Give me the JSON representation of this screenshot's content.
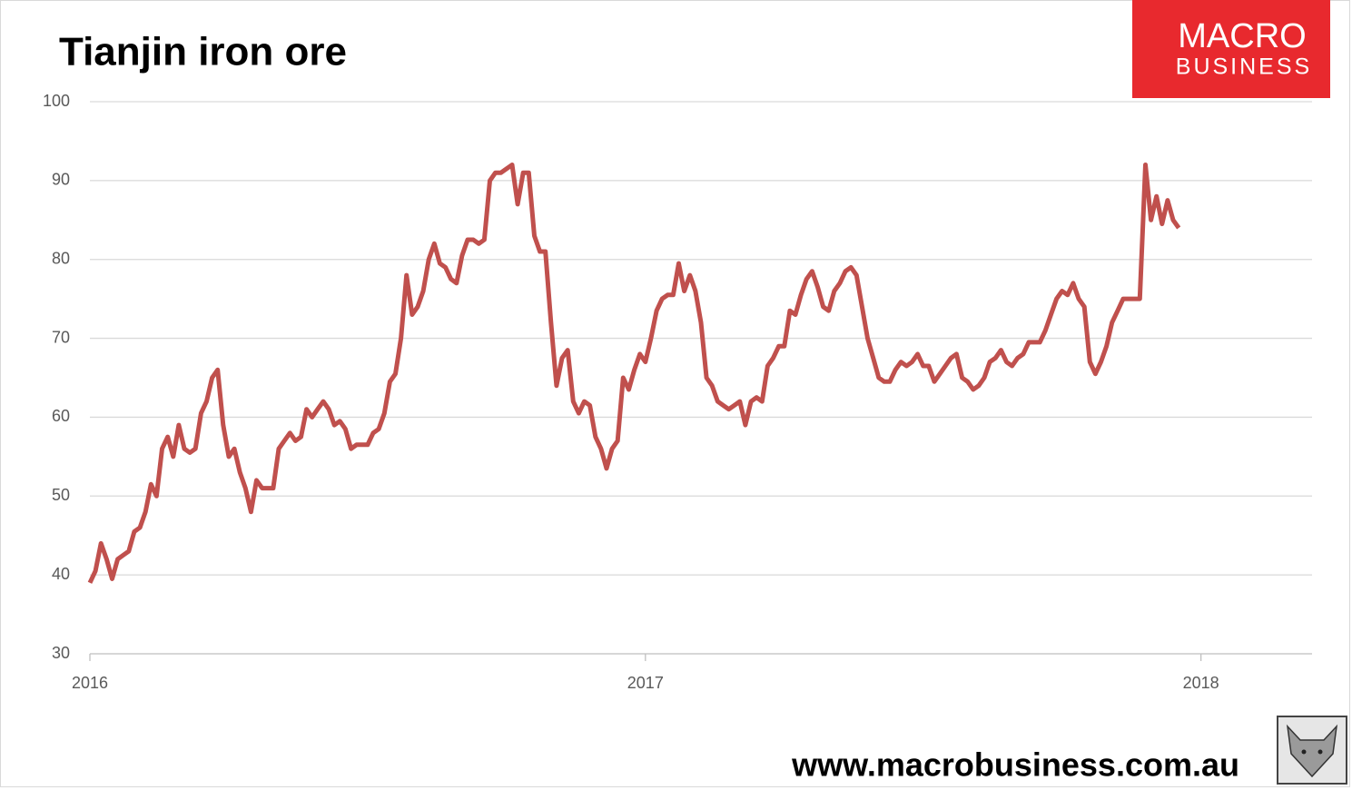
{
  "chart_data": {
    "type": "line",
    "title": "Tianjin iron ore",
    "x": [
      2016,
      2016.01,
      2016.02,
      2016.03,
      2016.04,
      2016.05,
      2016.06,
      2016.07,
      2016.08,
      2016.09,
      2016.1,
      2016.11,
      2016.12,
      2016.13,
      2016.14,
      2016.15,
      2016.16,
      2016.17,
      2016.18,
      2016.19,
      2016.2,
      2016.21,
      2016.22,
      2016.23,
      2016.24,
      2016.25,
      2016.26,
      2016.27,
      2016.28,
      2016.29,
      2016.3,
      2016.31,
      2016.32,
      2016.33,
      2016.34,
      2016.35,
      2016.36,
      2016.37,
      2016.38,
      2016.39,
      2016.4,
      2016.41,
      2016.42,
      2016.43,
      2016.44,
      2016.45,
      2016.46,
      2016.47,
      2016.48,
      2016.49,
      2016.5,
      2016.51,
      2016.52,
      2016.53,
      2016.54,
      2016.55,
      2016.56,
      2016.57,
      2016.58,
      2016.59,
      2016.6,
      2016.61,
      2016.62,
      2016.63,
      2016.64,
      2016.65,
      2016.66,
      2016.67,
      2016.68,
      2016.69,
      2016.7,
      2016.71,
      2016.72,
      2016.73,
      2016.74,
      2016.75,
      2016.76,
      2016.77,
      2016.78,
      2016.79,
      2016.8,
      2016.81,
      2016.82,
      2016.83,
      2016.84,
      2016.85,
      2016.86,
      2016.87,
      2016.88,
      2016.89,
      2016.9,
      2016.91,
      2016.92,
      2016.93,
      2016.94,
      2016.95,
      2016.96,
      2016.97,
      2016.98,
      2016.99,
      2017,
      2017.01,
      2017.02,
      2017.03,
      2017.04,
      2017.05,
      2017.06,
      2017.07,
      2017.08,
      2017.09,
      2017.1,
      2017.11,
      2017.12,
      2017.13,
      2017.14,
      2017.15,
      2017.16,
      2017.17,
      2017.18,
      2017.19,
      2017.2,
      2017.21,
      2017.22,
      2017.23,
      2017.24,
      2017.25,
      2017.26,
      2017.27,
      2017.28,
      2017.29,
      2017.3,
      2017.31,
      2017.32,
      2017.33,
      2017.34,
      2017.35,
      2017.36,
      2017.37,
      2017.38,
      2017.39,
      2017.4,
      2017.41,
      2017.42,
      2017.43,
      2017.44,
      2017.45,
      2017.46,
      2017.47,
      2017.48,
      2017.49,
      2017.5,
      2017.51,
      2017.52,
      2017.53,
      2017.54,
      2017.55,
      2017.56,
      2017.57,
      2017.58,
      2017.59,
      2017.6,
      2017.61,
      2017.62,
      2017.63,
      2017.64,
      2017.65,
      2017.66,
      2017.67,
      2017.68,
      2017.69,
      2017.7,
      2017.71,
      2017.72,
      2017.73,
      2017.74,
      2017.75,
      2017.76,
      2017.77,
      2017.78,
      2017.79,
      2017.8,
      2017.81,
      2017.82,
      2017.83,
      2017.84,
      2017.85,
      2017.86,
      2017.87,
      2017.88,
      2017.89,
      2017.9,
      2017.91,
      2017.92,
      2017.93,
      2017.94,
      2017.95,
      2017.96
    ],
    "series": [
      {
        "color": "#c0504d",
        "values": [
          39,
          40.5,
          44,
          42,
          39.5,
          42,
          42.5,
          43,
          45.5,
          46,
          48,
          51.5,
          50,
          56,
          57.5,
          55,
          59,
          56,
          55.5,
          56,
          60.5,
          62,
          65,
          66,
          59,
          55,
          56,
          53,
          51,
          48,
          52,
          51,
          51,
          51,
          56,
          57,
          58,
          57,
          57.5,
          61,
          60,
          61,
          62,
          61,
          59,
          59.5,
          58.5,
          56,
          56.5,
          56.5,
          56.5,
          58,
          58.5,
          60.5,
          64.5,
          65.5,
          70,
          78,
          73,
          74,
          76,
          80,
          82,
          79.5,
          79,
          77.5,
          77,
          80.5,
          82.5,
          82.5,
          82,
          82.5,
          90,
          91,
          91,
          91.5,
          92,
          87,
          91,
          91,
          83,
          81,
          81,
          72,
          64,
          67.5,
          68.5,
          62,
          60.5,
          62,
          61.5,
          57.5,
          56,
          53.5,
          56,
          57,
          65,
          63.5,
          66,
          68,
          67,
          70,
          73.5,
          75,
          75.5,
          75.5,
          79.5,
          76,
          78,
          76,
          72,
          65,
          64,
          62,
          61.5,
          61,
          61.5,
          62,
          59,
          62,
          62.5,
          62,
          66.5,
          67.5,
          69,
          69,
          73.5,
          73,
          75.5,
          77.5,
          78.5,
          76.5,
          74,
          73.5,
          76,
          77,
          78.5,
          79,
          78,
          74,
          70,
          67.5,
          65,
          64.5,
          64.5,
          66,
          67,
          66.5,
          67,
          68,
          66.5,
          66.5,
          64.5,
          65.5,
          66.5,
          67.5,
          68,
          65,
          64.5,
          63.5,
          64,
          65,
          67,
          67.5,
          68.5,
          67,
          66.5,
          67.5,
          68,
          69.5,
          69.5,
          69.5,
          71,
          73,
          75,
          76,
          75.5,
          77,
          75,
          74,
          67,
          65.5,
          67,
          69,
          72,
          73.5,
          75,
          75,
          75,
          75,
          92,
          85,
          88,
          84.5,
          87.5,
          85,
          84
        ]
      }
    ],
    "xlim": [
      2016,
      2018.2
    ],
    "xticks": [
      2016,
      2017,
      2018
    ],
    "ylim": [
      30,
      100
    ],
    "yticks": [
      30,
      40,
      50,
      60,
      70,
      80,
      90,
      100
    ],
    "grid": true
  },
  "branding": {
    "logo_top": "MACRO",
    "logo_bottom": "BUSINESS",
    "website": "www.macrobusiness.com.au"
  }
}
